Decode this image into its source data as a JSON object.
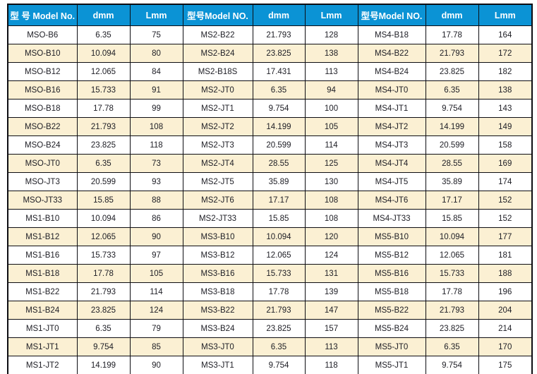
{
  "table": {
    "headers": [
      "型 号 Model No.",
      "dmm",
      "Lmm",
      "型号Model NO.",
      "dmm",
      "Lmm",
      "型号Model NO.",
      "dmm",
      "Lmm"
    ],
    "rows": [
      [
        "MSO-B6",
        "6.35",
        "75",
        "MS2-B22",
        "21.793",
        "128",
        "MS4-B18",
        "17.78",
        "164"
      ],
      [
        "MSO-B10",
        "10.094",
        "80",
        "MS2-B24",
        "23.825",
        "138",
        "MS4-B22",
        "21.793",
        "172"
      ],
      [
        "MSO-B12",
        "12.065",
        "84",
        "MS2-B18S",
        "17.431",
        "113",
        "MS4-B24",
        "23.825",
        "182"
      ],
      [
        "MSO-B16",
        "15.733",
        "91",
        "MS2-JT0",
        "6.35",
        "94",
        "MS4-JT0",
        "6.35",
        "138"
      ],
      [
        "MSO-B18",
        "17.78",
        "99",
        "MS2-JT1",
        "9.754",
        "100",
        "MS4-JT1",
        "9.754",
        "143"
      ],
      [
        "MSO-B22",
        "21.793",
        "108",
        "MS2-JT2",
        "14.199",
        "105",
        "MS4-JT2",
        "14.199",
        "149"
      ],
      [
        "MSO-B24",
        "23.825",
        "118",
        "MS2-JT3",
        "20.599",
        "114",
        "MS4-JT3",
        "20.599",
        "158"
      ],
      [
        "MSO-JT0",
        "6.35",
        "73",
        "MS2-JT4",
        "28.55",
        "125",
        "MS4-JT4",
        "28.55",
        "169"
      ],
      [
        "MSO-JT3",
        "20.599",
        "93",
        "MS2-JT5",
        "35.89",
        "130",
        "MS4-JT5",
        "35.89",
        "174"
      ],
      [
        "MSO-JT33",
        "15.85",
        "88",
        "MS2-JT6",
        "17.17",
        "108",
        "MS4-JT6",
        "17.17",
        "152"
      ],
      [
        "MS1-B10",
        "10.094",
        "86",
        "MS2-JT33",
        "15.85",
        "108",
        "MS4-JT33",
        "15.85",
        "152"
      ],
      [
        "MS1-B12",
        "12.065",
        "90",
        "MS3-B10",
        "10.094",
        "120",
        "MS5-B10",
        "10.094",
        "177"
      ],
      [
        "MS1-B16",
        "15.733",
        "97",
        "MS3-B12",
        "12.065",
        "124",
        "MS5-B12",
        "12.065",
        "181"
      ],
      [
        "MS1-B18",
        "17.78",
        "105",
        "MS3-B16",
        "15.733",
        "131",
        "MS5-B16",
        "15.733",
        "188"
      ],
      [
        "MS1-B22",
        "21.793",
        "114",
        "MS3-B18",
        "17.78",
        "139",
        "MS5-B18",
        "17.78",
        "196"
      ],
      [
        "MS1-B24",
        "23.825",
        "124",
        "MS3-B22",
        "21.793",
        "147",
        "MS5-B22",
        "21.793",
        "204"
      ],
      [
        "MS1-JT0",
        "6.35",
        "79",
        "MS3-B24",
        "23.825",
        "157",
        "MS5-B24",
        "23.825",
        "214"
      ],
      [
        "MS1-JT1",
        "9.754",
        "85",
        "MS3-JT0",
        "6.35",
        "113",
        "MS5-JT0",
        "6.35",
        "170"
      ],
      [
        "MS1-JT2",
        "14.199",
        "90",
        "MS3-JT1",
        "9.754",
        "118",
        "MS5-JT1",
        "9.754",
        "175"
      ]
    ]
  },
  "colors": {
    "header_bg": "#0b93d5",
    "header_text": "#ffffff",
    "row_alt_bg": "#fbf0d3",
    "row_bg": "#ffffff",
    "border": "#0d0d12",
    "cell_text": "#202027"
  }
}
